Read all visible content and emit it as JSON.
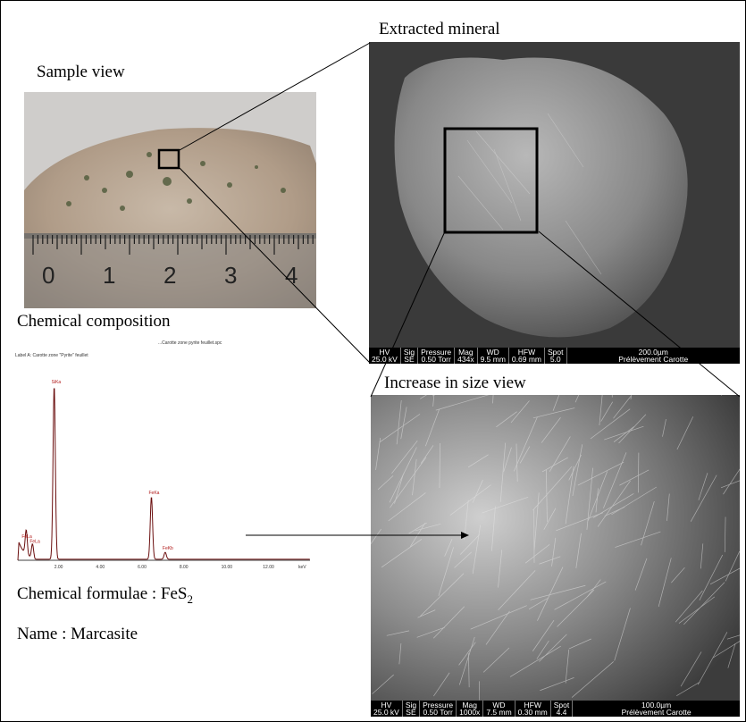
{
  "labels": {
    "extracted_mineral": "Extracted mineral",
    "sample_view": "Sample view",
    "chemical_composition": "Chemical composition",
    "increase_in_size": "Increase in size view",
    "formula_prefix": "Chemical formulae : FeS",
    "formula_subscript": "2",
    "name": "Name : Marcasite"
  },
  "ruler": {
    "numbers": [
      "0",
      "1",
      "2",
      "3",
      "4"
    ]
  },
  "sem_top": {
    "cells": [
      {
        "head": "HV",
        "val": "25.0 kV"
      },
      {
        "head": "Sig",
        "val": "SE"
      },
      {
        "head": "Pressure",
        "val": "0.50 Torr"
      },
      {
        "head": "Mag",
        "val": "434x"
      },
      {
        "head": "WD",
        "val": "9.5 mm"
      },
      {
        "head": "HFW",
        "val": "0.69 mm"
      },
      {
        "head": "Spot",
        "val": "5.0"
      }
    ],
    "scale": "200.0µm",
    "caption": "Prélèvement Carotte"
  },
  "sem_bottom": {
    "cells": [
      {
        "head": "HV",
        "val": "25.0 kV"
      },
      {
        "head": "Sig",
        "val": "SE"
      },
      {
        "head": "Pressure",
        "val": "0.50 Torr"
      },
      {
        "head": "Mag",
        "val": "1000x"
      },
      {
        "head": "WD",
        "val": "7.5 mm"
      },
      {
        "head": "HFW",
        "val": "0.30 mm"
      },
      {
        "head": "Spot",
        "val": "4.4"
      }
    ],
    "scale": "100.0µm",
    "caption": "Prélèvement Carotte"
  },
  "spectrum": {
    "header_path": "...Carotte zone pyrite feuillet.spc",
    "header_label": "Label A: Carotte zone \"Pyrite\" feuillet",
    "x_ticks": [
      "2.00",
      "4.00",
      "6.00",
      "8.00",
      "10.00",
      "12.00",
      "keV"
    ],
    "peaks": [
      {
        "label": "SiKa",
        "x": 1.74,
        "y": 100
      },
      {
        "label": "FeKa",
        "x": 6.4,
        "y": 36
      },
      {
        "label": "FeKb",
        "x": 7.06,
        "y": 4
      },
      {
        "label": "FeLa",
        "x": 0.7,
        "y": 8
      },
      {
        "label": "FeLa",
        "x": 0.4,
        "y": 14
      }
    ]
  }
}
